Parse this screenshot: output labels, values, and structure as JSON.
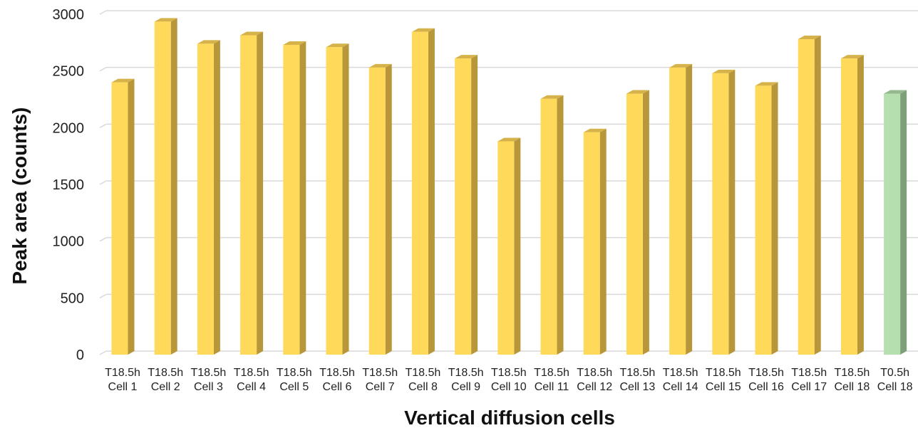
{
  "chart_data": {
    "type": "bar",
    "title": "",
    "xlabel": "Vertical diffusion cells",
    "ylabel": "Peak area (counts)",
    "ylim": [
      0,
      3000
    ],
    "yticks": [
      0,
      500,
      1000,
      1500,
      2000,
      2500,
      3000
    ],
    "grid": true,
    "categories": [
      [
        "T18.5h",
        "Cell 1"
      ],
      [
        "T18.5h",
        "Cell 2"
      ],
      [
        "T18.5h",
        "Cell 3"
      ],
      [
        "T18.5h",
        "Cell 4"
      ],
      [
        "T18.5h",
        "Cell 5"
      ],
      [
        "T18.5h",
        "Cell 6"
      ],
      [
        "T18.5h",
        "Cell 7"
      ],
      [
        "T18.5h",
        "Cell 8"
      ],
      [
        "T18.5h",
        "Cell 9"
      ],
      [
        "T18.5h",
        "Cell 10"
      ],
      [
        "T18.5h",
        "Cell 11"
      ],
      [
        "T18.5h",
        "Cell 12"
      ],
      [
        "T18.5h",
        "Cell 13"
      ],
      [
        "T18.5h",
        "Cell 14"
      ],
      [
        "T18.5h",
        "Cell 15"
      ],
      [
        "T18.5h",
        "Cell 16"
      ],
      [
        "T18.5h",
        "Cell 17"
      ],
      [
        "T18.5h",
        "Cell 18"
      ],
      [
        "T0.5h",
        "Cell 18"
      ]
    ],
    "values": [
      2400,
      2935,
      2740,
      2815,
      2730,
      2710,
      2530,
      2845,
      2610,
      1880,
      2255,
      1960,
      2300,
      2530,
      2480,
      2370,
      2780,
      2610,
      2300
    ],
    "colors": {
      "t18_front": "#FFD95A",
      "t18_side": "#B8973A",
      "t18_top": "#D6B24A",
      "t0_front": "#B6DFB0",
      "t0_side": "#7E9F7A",
      "t0_top": "#95B88E",
      "grid": "#D9D9D9"
    },
    "bar_colors": [
      "t18",
      "t18",
      "t18",
      "t18",
      "t18",
      "t18",
      "t18",
      "t18",
      "t18",
      "t18",
      "t18",
      "t18",
      "t18",
      "t18",
      "t18",
      "t18",
      "t18",
      "t18",
      "t0"
    ]
  }
}
